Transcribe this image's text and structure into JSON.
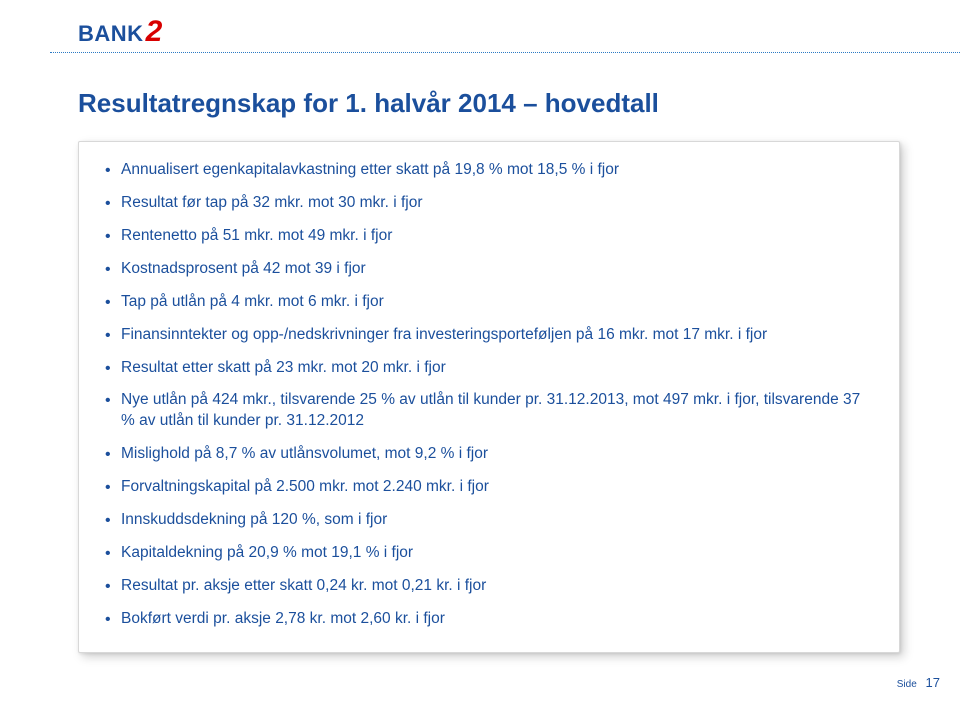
{
  "logo": {
    "text1": "BANK",
    "text2": "2"
  },
  "title": "Resultatregnskap for 1. halvår 2014 – hovedtall",
  "bullets": [
    "Annualisert egenkapitalavkastning etter skatt på 19,8 % mot 18,5 % i fjor",
    "Resultat før tap på 32 mkr. mot 30 mkr. i fjor",
    "Rentenetto på 51 mkr. mot 49 mkr. i fjor",
    "Kostnadsprosent på 42 mot 39 i fjor",
    "Tap på utlån på 4 mkr. mot 6 mkr. i fjor",
    "Finansinntekter og opp-/nedskrivninger fra investeringsporteføljen på 16 mkr. mot 17 mkr. i fjor",
    "Resultat etter skatt på 23 mkr. mot 20 mkr. i fjor",
    "Nye utlån på 424 mkr., tilsvarende 25 % av utlån til kunder pr. 31.12.2013, mot 497 mkr. i fjor, tilsvarende 37 % av utlån til kunder pr. 31.12.2012",
    "Mislighold på 8,7 % av utlånsvolumet, mot 9,2 % i fjor",
    "Forvaltningskapital på 2.500 mkr. mot 2.240 mkr. i fjor",
    "Innskuddsdekning på 120 %, som i fjor",
    "Kapitaldekning på 20,9 % mot 19,1 % i fjor",
    "Resultat pr. aksje etter skatt 0,24 kr. mot 0,21 kr. i fjor",
    "Bokført verdi pr. aksje 2,78 kr. mot 2,60 kr. i fjor"
  ],
  "footer": {
    "side_label": "Side",
    "page_num": "17"
  },
  "colors": {
    "primary": "#1b4f9c",
    "accent": "#d80000",
    "divider": "#2b7ac4",
    "box_border": "#d8d8d8",
    "background": "#ffffff"
  }
}
